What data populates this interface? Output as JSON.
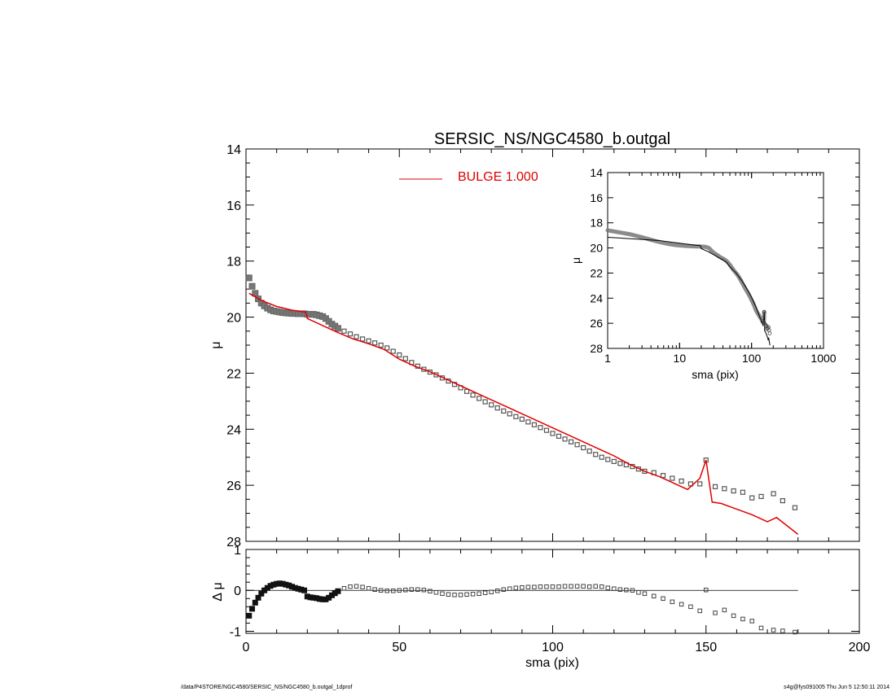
{
  "title": "SERSIC_NS/NGC4580_b.outgal",
  "footer_left": "/data/P4STORE/NGC4580/SERSIC_NS/NGC4580_b.outgal_1dprof",
  "footer_right": "s4g@fys091005  Thu Jun  5 12:50:11 2014",
  "colors": {
    "model": "#e00000",
    "data": "#666666",
    "axes": "#000000"
  },
  "chart_data": [
    {
      "name": "main-profile",
      "type": "scatter",
      "xlabel": "",
      "ylabel": "μ",
      "xlim": [
        0,
        200
      ],
      "ylim": [
        28,
        14
      ],
      "yticks": [
        14,
        16,
        18,
        20,
        22,
        24,
        26,
        28
      ],
      "legend": {
        "position": "top-center",
        "label": "BULGE  1.000"
      },
      "series": [
        {
          "kind": "data-points",
          "x": [
            1,
            2,
            3,
            4,
            5,
            6,
            7,
            8,
            9,
            10,
            11,
            12,
            13,
            14,
            15,
            16,
            17,
            18,
            19,
            20,
            21,
            22,
            23,
            24,
            25,
            26,
            27,
            28,
            29,
            30,
            32,
            34,
            36,
            38,
            40,
            42,
            44,
            46,
            48,
            50,
            52,
            54,
            56,
            58,
            60,
            62,
            64,
            66,
            68,
            70,
            72,
            74,
            76,
            78,
            80,
            82,
            84,
            86,
            88,
            90,
            92,
            94,
            96,
            98,
            100,
            102,
            104,
            106,
            108,
            110,
            112,
            114,
            116,
            118,
            120,
            122,
            124,
            126,
            128,
            130,
            133,
            136,
            139,
            142,
            145,
            148,
            150,
            153,
            156,
            159,
            162,
            165,
            168,
            172,
            175,
            179
          ],
          "y": [
            18.6,
            18.9,
            19.15,
            19.35,
            19.5,
            19.6,
            19.68,
            19.74,
            19.78,
            19.8,
            19.82,
            19.84,
            19.85,
            19.86,
            19.87,
            19.87,
            19.88,
            19.88,
            19.88,
            19.9,
            19.9,
            19.9,
            19.92,
            19.95,
            19.98,
            20.05,
            20.15,
            20.25,
            20.32,
            20.4,
            20.5,
            20.6,
            20.7,
            20.78,
            20.85,
            20.92,
            21.0,
            21.1,
            21.22,
            21.35,
            21.48,
            21.62,
            21.75,
            21.86,
            21.96,
            22.06,
            22.17,
            22.28,
            22.4,
            22.52,
            22.65,
            22.78,
            22.9,
            23.02,
            23.13,
            23.24,
            23.35,
            23.45,
            23.55,
            23.64,
            23.74,
            23.84,
            23.94,
            24.04,
            24.15,
            24.25,
            24.35,
            24.45,
            24.55,
            24.66,
            24.78,
            24.9,
            25.0,
            25.08,
            25.15,
            25.22,
            25.27,
            25.33,
            25.42,
            25.5,
            25.55,
            25.65,
            25.75,
            25.85,
            25.95,
            25.95,
            25.1,
            26.05,
            26.12,
            26.2,
            26.25,
            26.45,
            26.4,
            26.3,
            26.55,
            26.8
          ]
        },
        {
          "kind": "model-line",
          "name": "BULGE  1.000",
          "x": [
            1,
            5,
            10,
            15,
            19.5,
            20,
            25,
            30,
            35,
            40,
            45,
            50,
            55,
            60,
            65,
            70,
            75,
            80,
            85,
            90,
            95,
            100,
            105,
            110,
            115,
            120,
            125,
            130,
            135,
            140,
            144,
            148,
            150,
            152,
            155,
            160,
            165,
            170,
            173,
            180
          ],
          "y": [
            19.15,
            19.4,
            19.62,
            19.75,
            19.82,
            20.05,
            20.3,
            20.55,
            20.78,
            20.95,
            21.15,
            21.5,
            21.75,
            21.95,
            22.2,
            22.45,
            22.7,
            22.95,
            23.2,
            23.45,
            23.7,
            23.95,
            24.2,
            24.45,
            24.7,
            24.95,
            25.25,
            25.5,
            25.7,
            25.95,
            26.15,
            25.75,
            25.1,
            26.6,
            26.65,
            26.85,
            27.05,
            27.3,
            27.15,
            27.75
          ]
        }
      ]
    },
    {
      "name": "residuals",
      "type": "scatter",
      "xlabel": "sma (pix)",
      "ylabel": "Δ μ",
      "xlim": [
        0,
        200
      ],
      "ylim": [
        -1.05,
        1.0
      ],
      "xticks": [
        0,
        50,
        100,
        150,
        200
      ],
      "yticks": [
        -1,
        0,
        1
      ],
      "series": [
        {
          "kind": "residual-points",
          "x": [
            1,
            2,
            3,
            4,
            5,
            6,
            7,
            8,
            9,
            10,
            11,
            12,
            13,
            14,
            15,
            16,
            17,
            18,
            19,
            20,
            21,
            22,
            23,
            24,
            25,
            26,
            27,
            28,
            29,
            30,
            32,
            34,
            36,
            38,
            40,
            42,
            44,
            46,
            48,
            50,
            52,
            54,
            56,
            58,
            60,
            62,
            64,
            66,
            68,
            70,
            72,
            74,
            76,
            78,
            80,
            82,
            84,
            86,
            88,
            90,
            92,
            94,
            96,
            98,
            100,
            102,
            104,
            106,
            108,
            110,
            112,
            114,
            116,
            118,
            120,
            122,
            124,
            126,
            128,
            130,
            133,
            136,
            139,
            142,
            145,
            148,
            150,
            153,
            156,
            159,
            162,
            165,
            168,
            172,
            175,
            179
          ],
          "y": [
            -0.62,
            -0.45,
            -0.3,
            -0.18,
            -0.08,
            0.0,
            0.06,
            0.11,
            0.14,
            0.16,
            0.17,
            0.16,
            0.14,
            0.12,
            0.09,
            0.06,
            0.04,
            0.02,
            0.0,
            -0.15,
            -0.17,
            -0.18,
            -0.19,
            -0.21,
            -0.22,
            -0.22,
            -0.18,
            -0.12,
            -0.07,
            -0.02,
            0.05,
            0.09,
            0.1,
            0.08,
            0.05,
            0.02,
            0.0,
            -0.01,
            -0.01,
            0.0,
            0.01,
            0.02,
            0.02,
            0.01,
            -0.02,
            -0.05,
            -0.08,
            -0.1,
            -0.11,
            -0.11,
            -0.1,
            -0.09,
            -0.08,
            -0.06,
            -0.04,
            -0.01,
            0.02,
            0.04,
            0.06,
            0.07,
            0.08,
            0.08,
            0.09,
            0.09,
            0.09,
            0.09,
            0.1,
            0.1,
            0.1,
            0.1,
            0.09,
            0.1,
            0.09,
            0.06,
            0.04,
            0.02,
            0.01,
            0.0,
            -0.05,
            -0.08,
            -0.14,
            -0.2,
            -0.28,
            -0.34,
            -0.4,
            -0.5,
            0.01,
            -0.55,
            -0.48,
            -0.62,
            -0.7,
            -0.75,
            -0.92,
            -0.97,
            -0.99,
            -1.02
          ]
        },
        {
          "kind": "zero-line",
          "x": [
            1,
            180
          ],
          "y": [
            0,
            0
          ]
        }
      ]
    },
    {
      "name": "inset",
      "type": "scatter",
      "xlabel": "sma (pix)",
      "ylabel": "μ",
      "xscale": "log",
      "xlim": [
        1,
        1000
      ],
      "ylim": [
        28,
        14
      ],
      "xticks": [
        1,
        10,
        100,
        1000
      ],
      "yticks": [
        14,
        16,
        18,
        20,
        22,
        24,
        26,
        28
      ],
      "series": [
        {
          "kind": "data-band",
          "source": "main-profile data-points"
        },
        {
          "kind": "model-line-black",
          "source": "main-profile model-line"
        }
      ]
    }
  ]
}
